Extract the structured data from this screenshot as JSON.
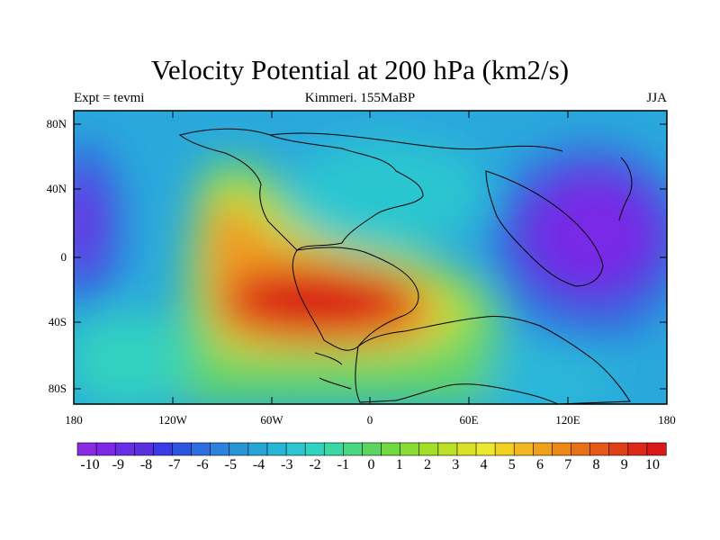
{
  "map": {
    "title": "Velocity Potential at 200 hPa (km2/s)",
    "subtitle_left": "Expt = tevmi",
    "subtitle_center": "Kimmeri. 155MaBP",
    "subtitle_right": "JJA",
    "projection": "cylindrical equidistant",
    "lat_labels": [
      "80N",
      "40N",
      "0",
      "40S",
      "80S"
    ],
    "lat_values": [
      80,
      40,
      0,
      -40,
      -80
    ],
    "lon_labels": [
      "180",
      "120W",
      "60W",
      "0",
      "60E",
      "120E",
      "180"
    ],
    "lon_values": [
      -180,
      -120,
      -60,
      0,
      60,
      120,
      180
    ],
    "field_extrema": [
      {
        "lon": -60,
        "lat": -25,
        "value": 10,
        "label": "maximum (red)"
      },
      {
        "lon": 128,
        "lat": 10,
        "value": -10,
        "label": "minimum (purple)"
      },
      {
        "lon": -178,
        "lat": 8,
        "value": -8,
        "label": "minimum west edge (dateline wrap)"
      }
    ]
  },
  "colorbar": {
    "labels": [
      "-10",
      "-9",
      "-8",
      "-7",
      "-6",
      "-5",
      "-4",
      "-3",
      "-2",
      "-1",
      "0",
      "1",
      "2",
      "3",
      "4",
      "5",
      "6",
      "7",
      "8",
      "9",
      "10"
    ],
    "min": -10,
    "max": 10,
    "colors": [
      "#8a2be2",
      "#7c28e6",
      "#6a2de6",
      "#5a2fe0",
      "#3a3be6",
      "#2e55e0",
      "#2e6ee0",
      "#2b82dd",
      "#2895d6",
      "#27a6d6",
      "#27b6d6",
      "#2cc6d0",
      "#30d2c0",
      "#3ad8a4",
      "#48d884",
      "#5ad660",
      "#70d840",
      "#88dc34",
      "#a2e028",
      "#bce024",
      "#d8e028",
      "#ece830",
      "#f2d020",
      "#f2b820",
      "#f0a018",
      "#ec8818",
      "#e87018",
      "#e45818",
      "#e04018",
      "#dc2818",
      "#d81818"
    ]
  }
}
